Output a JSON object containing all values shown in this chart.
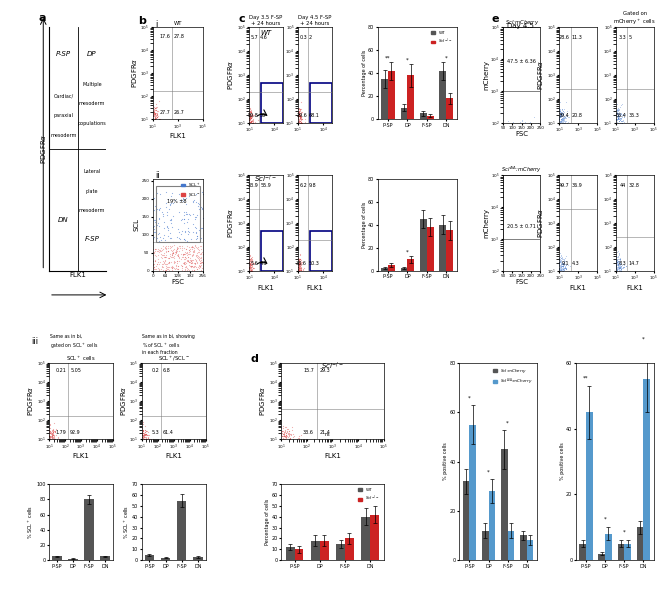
{
  "fs": 5,
  "fm": 6,
  "fl": 7,
  "scatter_red": "#dd4444",
  "scatter_blue": "#4477cc",
  "bar_dark": "#555555",
  "bar_red": "#cc2222",
  "bar_blue": "#5599cc",
  "navy": "#003388"
}
